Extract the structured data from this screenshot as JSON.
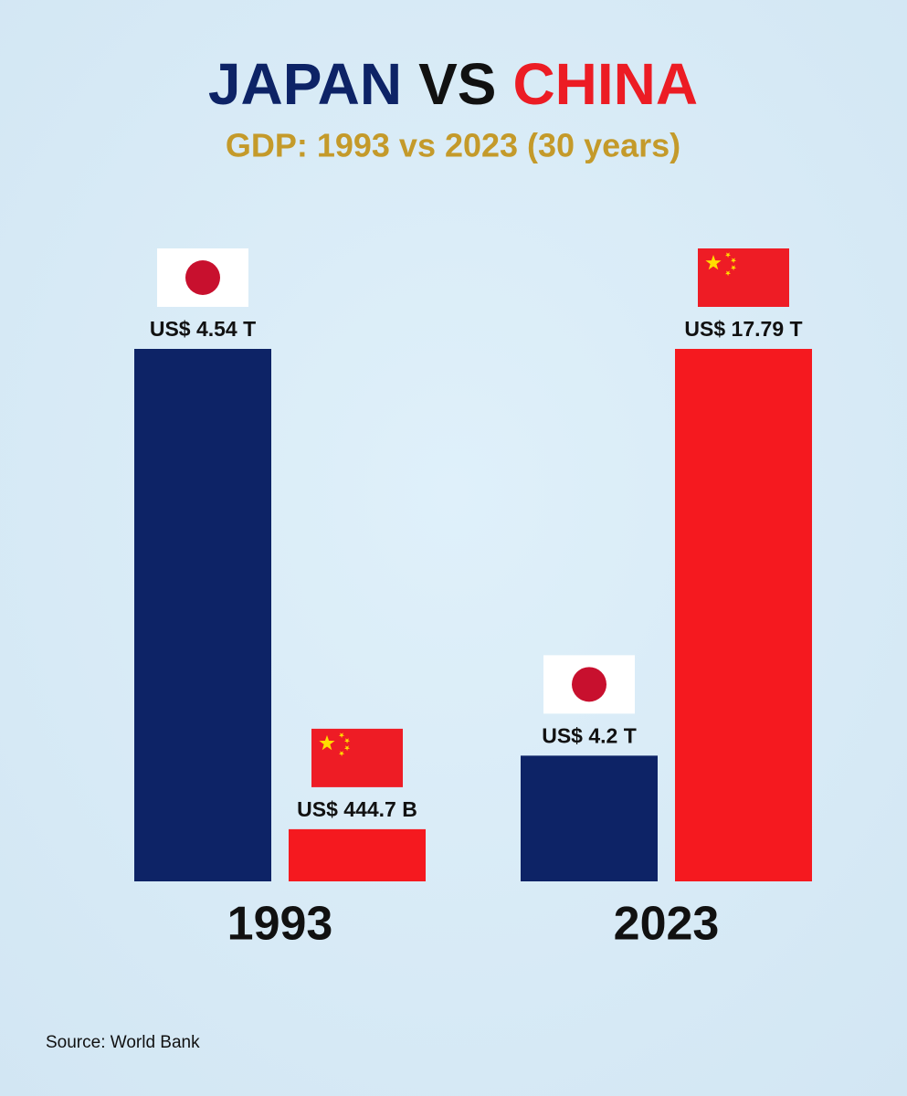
{
  "chart_data": {
    "type": "bar",
    "title": [
      {
        "text": "JAPAN",
        "color": "#0d2366"
      },
      {
        "text": "VS",
        "color": "#111111"
      },
      {
        "text": "CHINA",
        "color": "#ec1c24"
      }
    ],
    "subtitle": "GDP: 1993 vs 2023 (30 years)",
    "categories": [
      "1993",
      "2023"
    ],
    "series": [
      {
        "flag": "jp",
        "color": "#0d2366",
        "values": [
          4.54,
          4.2
        ],
        "value_labels": [
          "US$ 4.54 T",
          "US$ 4.2 T"
        ]
      },
      {
        "flag": "cn",
        "color": "#f5191f",
        "values": [
          0.4447,
          17.79
        ],
        "value_labels": [
          "US$ 444.7 B",
          "US$ 17.79 T"
        ]
      }
    ],
    "source": "Source: World Bank"
  }
}
